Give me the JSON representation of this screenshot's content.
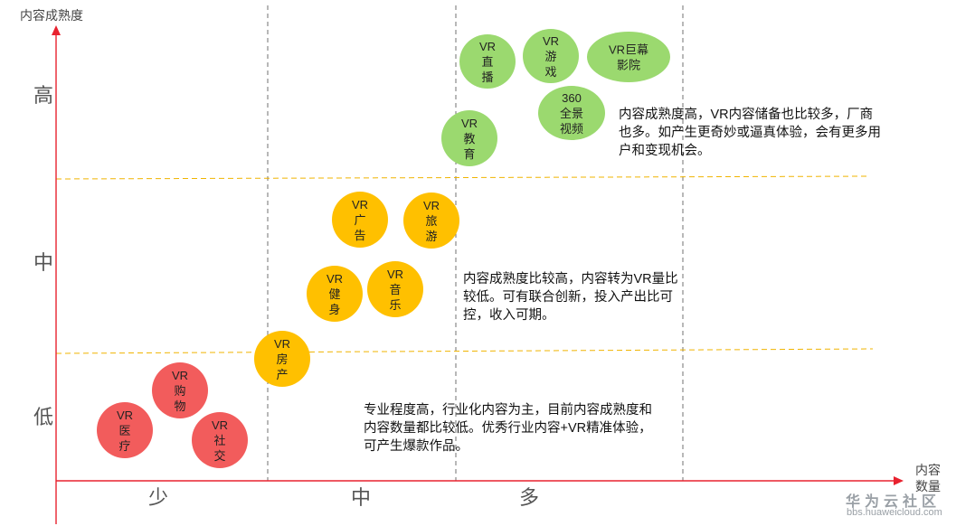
{
  "axes": {
    "y_title": "内容成熟度",
    "x_title": [
      "内容",
      "数量"
    ],
    "y_levels": [
      "高",
      "中",
      "低"
    ],
    "x_levels": [
      "少",
      "中",
      "多"
    ]
  },
  "colors": {
    "axis": "#e8222f",
    "high": "#9bd96f",
    "medium": "#ffc000",
    "low": "#f25c5c"
  },
  "bubbles": [
    {
      "id": "vr-live",
      "group": "high",
      "lines": [
        "VR",
        "直",
        "播"
      ]
    },
    {
      "id": "vr-game",
      "group": "high",
      "lines": [
        "VR",
        "游",
        "戏"
      ]
    },
    {
      "id": "vr-cinema",
      "group": "high",
      "lines": [
        "VR巨幕",
        "影院"
      ]
    },
    {
      "id": "vr-360",
      "group": "high",
      "lines": [
        "360",
        "全景",
        "视频"
      ]
    },
    {
      "id": "vr-education",
      "group": "high",
      "lines": [
        "VR",
        "教",
        "育"
      ]
    },
    {
      "id": "vr-ads",
      "group": "medium",
      "lines": [
        "VR",
        "广",
        "告"
      ]
    },
    {
      "id": "vr-travel",
      "group": "medium",
      "lines": [
        "VR",
        "旅",
        "游"
      ]
    },
    {
      "id": "vr-fitness",
      "group": "medium",
      "lines": [
        "VR",
        "健",
        "身"
      ]
    },
    {
      "id": "vr-music",
      "group": "medium",
      "lines": [
        "VR",
        "音",
        "乐"
      ]
    },
    {
      "id": "vr-realestate",
      "group": "medium",
      "lines": [
        "VR",
        "房",
        "产"
      ]
    },
    {
      "id": "vr-shopping",
      "group": "low",
      "lines": [
        "VR",
        "购",
        "物"
      ]
    },
    {
      "id": "vr-medical",
      "group": "low",
      "lines": [
        "VR",
        "医",
        "疗"
      ]
    },
    {
      "id": "vr-social",
      "group": "low",
      "lines": [
        "VR",
        "社",
        "交"
      ]
    }
  ],
  "notes": {
    "high": "内容成熟度高，VR内容储备也比较多，厂商也多。如产生更奇妙或逼真体验，会有更多用户和变现机会。",
    "medium": "内容成熟度比较高，内容转为VR量比较低。可有联合创新，投入产出比可控，收入可期。",
    "low": "专业程度高，行业化内容为主，目前内容成熟度和内容数量都比较低。优秀行业内容+VR精准体验，可产生爆款作品。"
  },
  "watermark": {
    "main": "华为云社区",
    "sub": "bbs.huaweicloud.com"
  }
}
